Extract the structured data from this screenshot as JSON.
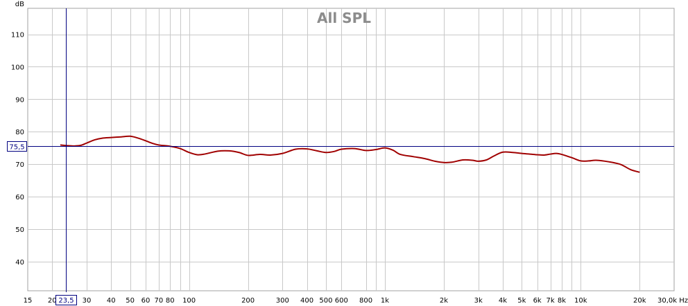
{
  "chart_data": {
    "type": "line",
    "title": "All SPL",
    "y_unit": "dB",
    "x_unit": "Hz",
    "x_scale": "log",
    "xlim": [
      15,
      30000
    ],
    "ylim": [
      31,
      118
    ],
    "grid": true,
    "x_ticks": [
      {
        "value": 15,
        "label": "15"
      },
      {
        "value": 20,
        "label": "20"
      },
      {
        "value": 30,
        "label": "30"
      },
      {
        "value": 40,
        "label": "40"
      },
      {
        "value": 50,
        "label": "50"
      },
      {
        "value": 60,
        "label": "60"
      },
      {
        "value": 70,
        "label": "70"
      },
      {
        "value": 80,
        "label": "80"
      },
      {
        "value": 100,
        "label": "100"
      },
      {
        "value": 200,
        "label": "200"
      },
      {
        "value": 300,
        "label": "300"
      },
      {
        "value": 400,
        "label": "400"
      },
      {
        "value": 500,
        "label": "500"
      },
      {
        "value": 600,
        "label": "600"
      },
      {
        "value": 800,
        "label": "800"
      },
      {
        "value": 1000,
        "label": "1k"
      },
      {
        "value": 2000,
        "label": "2k"
      },
      {
        "value": 3000,
        "label": "3k"
      },
      {
        "value": 4000,
        "label": "4k"
      },
      {
        "value": 5000,
        "label": "5k"
      },
      {
        "value": 6000,
        "label": "6k"
      },
      {
        "value": 7000,
        "label": "7k"
      },
      {
        "value": 8000,
        "label": "8k"
      },
      {
        "value": 10000,
        "label": "10k"
      },
      {
        "value": 20000,
        "label": "20k"
      },
      {
        "value": 30000,
        "label": "30,0k Hz"
      }
    ],
    "x_minor_ticks": [
      90,
      900,
      9000
    ],
    "y_ticks": [
      40,
      50,
      60,
      70,
      80,
      90,
      100,
      110
    ],
    "cursor": {
      "x": 23.5,
      "x_label": "23,5",
      "y": 75.5,
      "y_label": "75,5"
    },
    "series": [
      {
        "color": "#a00000",
        "x": [
          22,
          24,
          26,
          28,
          30,
          33,
          36,
          40,
          45,
          50,
          55,
          60,
          65,
          70,
          80,
          90,
          100,
          110,
          120,
          140,
          160,
          180,
          200,
          230,
          260,
          300,
          350,
          400,
          450,
          500,
          550,
          600,
          700,
          800,
          900,
          1000,
          1100,
          1200,
          1400,
          1600,
          1800,
          2000,
          2200,
          2500,
          2800,
          3000,
          3300,
          3600,
          4000,
          4500,
          5000,
          5500,
          6000,
          6500,
          7000,
          7500,
          8000,
          9000,
          10000,
          11000,
          12000,
          14000,
          16000,
          18000,
          20000
        ],
        "y": [
          75.9,
          75.7,
          75.6,
          75.8,
          76.5,
          77.5,
          78.0,
          78.2,
          78.4,
          78.6,
          78.0,
          77.2,
          76.4,
          75.9,
          75.5,
          74.8,
          73.6,
          72.9,
          73.1,
          74.0,
          74.1,
          73.6,
          72.7,
          73.0,
          72.8,
          73.3,
          74.6,
          74.7,
          74.1,
          73.6,
          73.9,
          74.6,
          74.8,
          74.2,
          74.5,
          75.0,
          74.3,
          73.0,
          72.3,
          71.7,
          70.9,
          70.5,
          70.6,
          71.3,
          71.2,
          70.9,
          71.3,
          72.5,
          73.7,
          73.6,
          73.3,
          73.1,
          72.9,
          72.8,
          73.1,
          73.3,
          73.0,
          72.0,
          71.0,
          71.0,
          71.2,
          70.7,
          69.9,
          68.3,
          67.5
        ]
      }
    ]
  }
}
